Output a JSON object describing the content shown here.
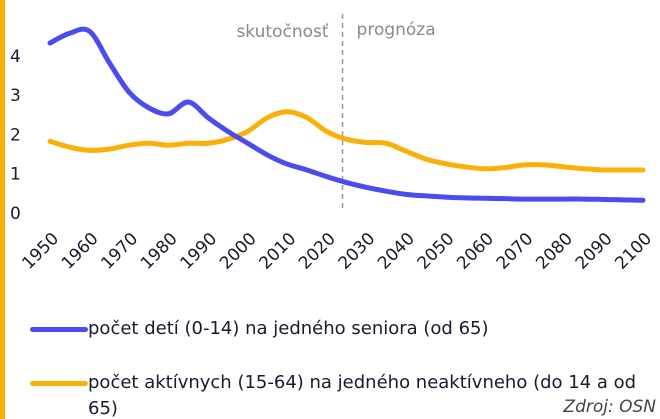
{
  "chart_data": {
    "type": "line",
    "annotations": [
      "skutočnosť",
      "prognóza"
    ],
    "forecast_start": 2024,
    "x": [
      1950,
      1955,
      1960,
      1965,
      1970,
      1975,
      1980,
      1985,
      1990,
      1995,
      2000,
      2005,
      2010,
      2015,
      2020,
      2025,
      2030,
      2035,
      2040,
      2045,
      2050,
      2055,
      2060,
      2065,
      2070,
      2075,
      2080,
      2085,
      2090,
      2095,
      2100
    ],
    "series": [
      {
        "name": "počet detí (0-14) na jedného seniora (od 65)",
        "color": "#4b4bef",
        "values": [
          4.35,
          4.6,
          4.65,
          3.85,
          3.1,
          2.7,
          2.55,
          2.85,
          2.45,
          2.1,
          1.8,
          1.5,
          1.27,
          1.12,
          0.95,
          0.8,
          0.68,
          0.58,
          0.5,
          0.46,
          0.43,
          0.41,
          0.4,
          0.39,
          0.38,
          0.38,
          0.38,
          0.38,
          0.37,
          0.36,
          0.35
        ]
      },
      {
        "name": "počet aktívnych (15-64) na jedného neaktívneho (do 14 a od 65)",
        "color": "#f9b10a",
        "values": [
          1.85,
          1.7,
          1.62,
          1.65,
          1.75,
          1.8,
          1.75,
          1.8,
          1.8,
          1.9,
          2.1,
          2.45,
          2.6,
          2.45,
          2.1,
          1.9,
          1.82,
          1.8,
          1.6,
          1.4,
          1.28,
          1.2,
          1.15,
          1.18,
          1.25,
          1.25,
          1.2,
          1.15,
          1.12,
          1.12,
          1.12
        ]
      }
    ],
    "xlim": [
      1950,
      2100
    ],
    "xticks": [
      1950,
      1960,
      1970,
      1980,
      1990,
      2000,
      2010,
      2020,
      2030,
      2040,
      2050,
      2060,
      2070,
      2080,
      2090,
      2100
    ],
    "ylim": [
      0,
      5.2
    ],
    "yticks": [
      0,
      1,
      2,
      3,
      4
    ],
    "source": "Zdroj: OSN"
  }
}
